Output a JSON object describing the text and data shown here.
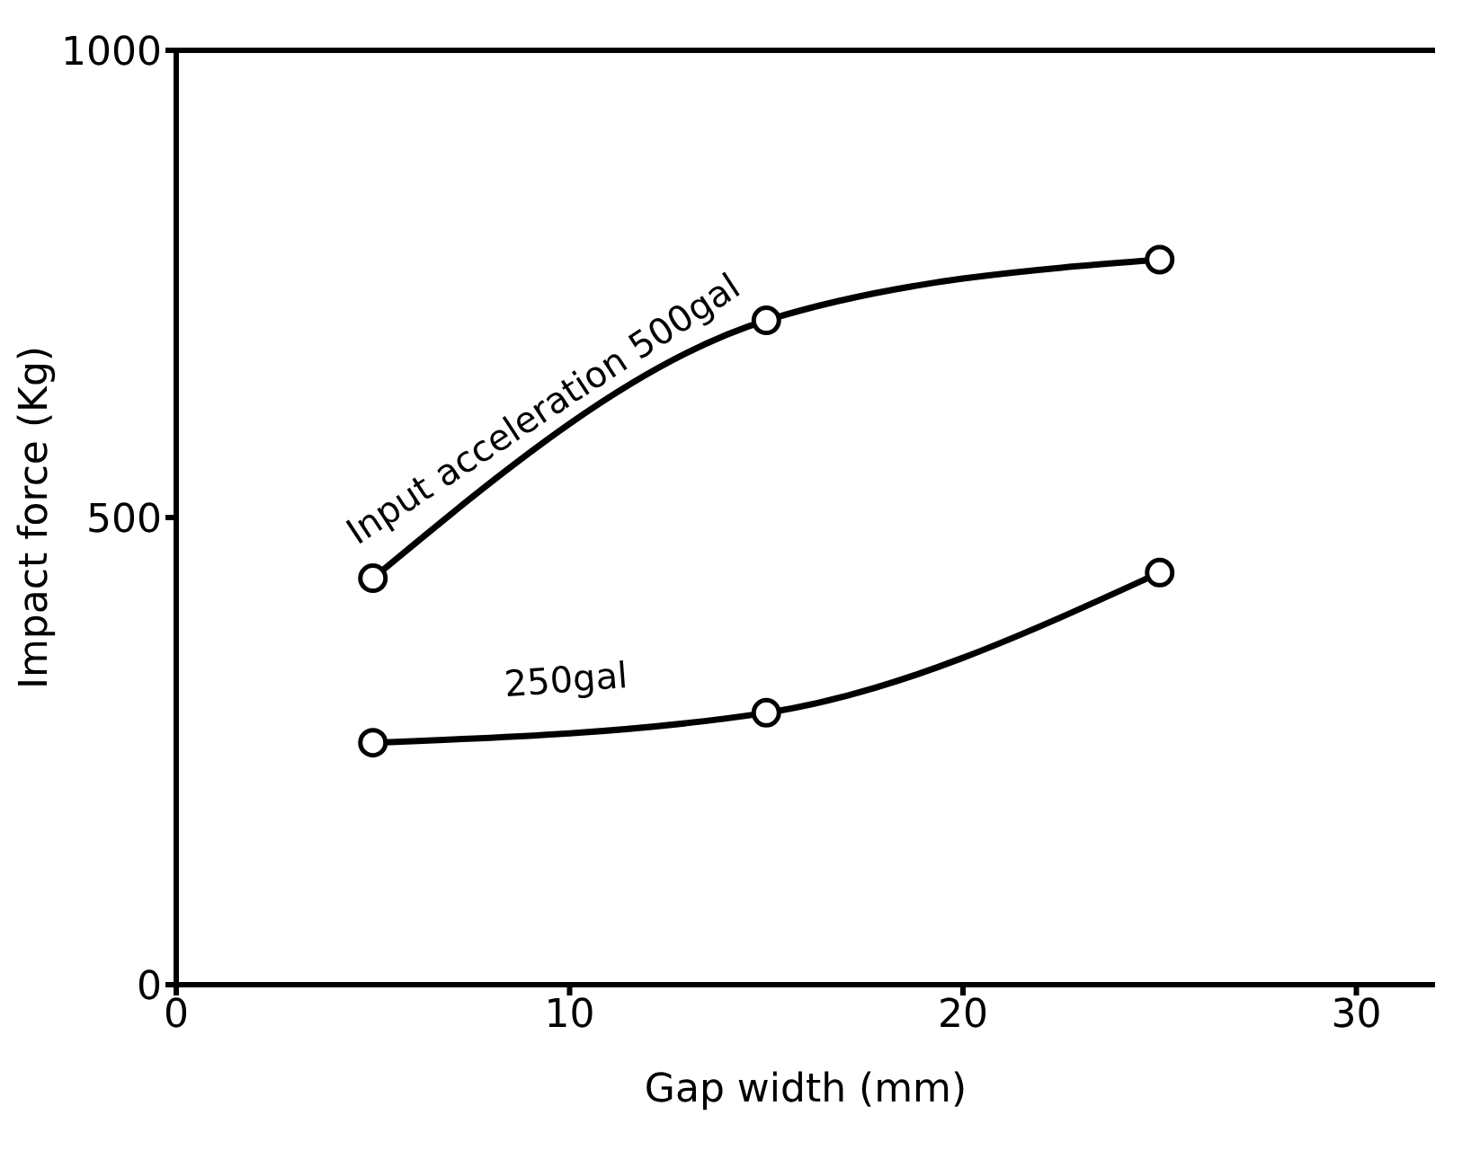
{
  "chart_data": {
    "type": "line",
    "xlabel": "Gap width (mm)",
    "ylabel": "Impact force (Kg)",
    "xlim": [
      0,
      32
    ],
    "ylim": [
      0,
      1000
    ],
    "xticks": [
      0,
      10,
      20,
      30
    ],
    "yticks": [
      0,
      500,
      1000
    ],
    "x": [
      5,
      15,
      25
    ],
    "marker": "circle",
    "grid": false,
    "legend": false,
    "series": [
      {
        "name": "Input acceleration 500gal",
        "color": "#000000",
        "values": [
          435,
          711,
          776
        ]
      },
      {
        "name": "250gal",
        "color": "#000000",
        "values": [
          259,
          291,
          441
        ]
      }
    ]
  }
}
